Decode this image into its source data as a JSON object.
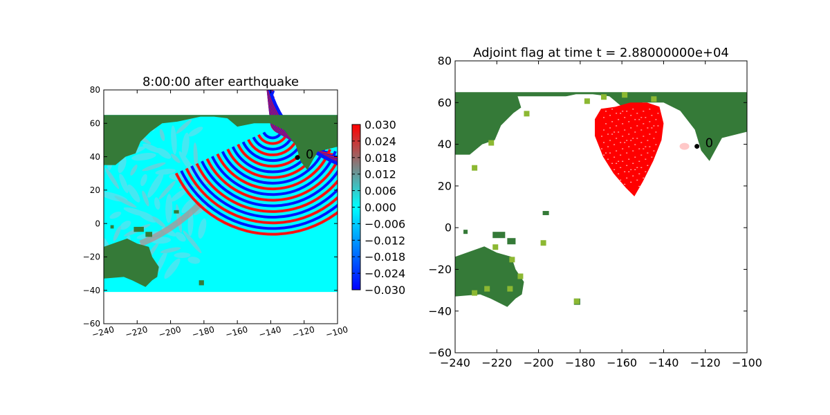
{
  "colors": {
    "land": "#357a38",
    "land_light": "#5f9e1f",
    "land_yellow": "#8cb832",
    "water": "#00ffff",
    "neg_wave": "#0018ff",
    "pos_wave": "#ff1010",
    "flag": "#ff0000",
    "station": "#000000"
  },
  "chart_data": [
    {
      "type": "heatmap",
      "title": "8:00:00 after earthquake",
      "xlim": [
        -240,
        -100
      ],
      "ylim": [
        -60,
        80
      ],
      "xticks": [
        "−240",
        "−220",
        "−200",
        "−180",
        "−160",
        "−140",
        "−120",
        "−100"
      ],
      "yticks": [
        "80",
        "60",
        "40",
        "20",
        "0",
        "−20",
        "−40",
        "−60"
      ],
      "xtick_rotation": "slanted",
      "domain_x": [
        -240,
        -100
      ],
      "domain_y": [
        -41,
        65
      ],
      "colorbar": {
        "min": -0.03,
        "max": 0.03,
        "ticks": [
          "0.030",
          "0.024",
          "0.018",
          "0.012",
          "0.006",
          "0.000",
          "−0.006",
          "−0.012",
          "−0.018",
          "−0.024",
          "−0.030"
        ],
        "colormap": [
          "#0000ff",
          "#00ffff",
          "#808080",
          "#ff0000"
        ]
      },
      "station": {
        "x": -124,
        "y": 39.5,
        "label": "0"
      }
    },
    {
      "type": "heatmap",
      "title": "Adjoint flag at time t = 2.88000000e+04",
      "xlim": [
        -240,
        -100
      ],
      "ylim": [
        -60,
        80
      ],
      "xticks": [
        "−240",
        "−220",
        "−200",
        "−180",
        "−160",
        "−140",
        "−120",
        "−100"
      ],
      "yticks": [
        "80",
        "60",
        "40",
        "20",
        "0",
        "−20",
        "−40",
        "−60"
      ],
      "domain_x": [
        -240,
        -100
      ],
      "domain_y": [
        -41,
        65
      ],
      "flag_region": {
        "x_range": [
          -174,
          -141
        ],
        "y_range": [
          13,
          60
        ],
        "label": "flagged cells"
      },
      "station": {
        "x": -124,
        "y": 39,
        "label": "0"
      }
    }
  ]
}
